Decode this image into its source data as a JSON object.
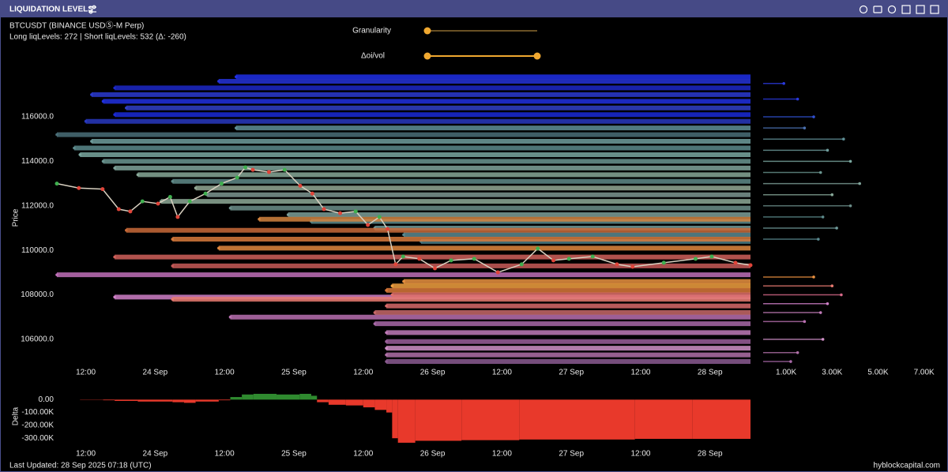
{
  "header": {
    "title": "LIQUIDATION LEVELS",
    "symbol": "BTCUSDT (BINANCE USDⓈ-M Perp)",
    "summary": "Long liqLevels: 272 | Short liqLevels: 532 (Δ: -260)",
    "controls": [
      "Granularity",
      "Δoi/vol"
    ]
  },
  "chart_data": [
    {
      "type": "liquidation-levels",
      "y_label": "Price",
      "xlim": [
        0,
        120
      ],
      "ylim": [
        104860,
        118060
      ],
      "xticks": [
        {
          "value": 5,
          "label": "12:00"
        },
        {
          "value": 17,
          "label": "24 Sep"
        },
        {
          "value": 29,
          "label": "12:00"
        },
        {
          "value": 41,
          "label": "25 Sep"
        },
        {
          "value": 53,
          "label": "12:00"
        },
        {
          "value": 65,
          "label": "26 Sep"
        },
        {
          "value": 77,
          "label": "12:00"
        },
        {
          "value": 89,
          "label": "27 Sep"
        },
        {
          "value": 101,
          "label": "12:00"
        },
        {
          "value": 113,
          "label": "28 Sep"
        }
      ],
      "yticks": [
        {
          "value": 106000,
          "label": "106000.0"
        },
        {
          "value": 108000,
          "label": "108000.0"
        },
        {
          "value": 110000,
          "label": "110000.0"
        },
        {
          "value": 112000,
          "label": "112000.0"
        },
        {
          "value": 114000,
          "label": "114000.0"
        },
        {
          "value": 116000,
          "label": "116000.0"
        }
      ],
      "levels": {
        "prices": [
          117800,
          117600,
          117300,
          117000,
          116700,
          116400,
          116100,
          115800,
          115500,
          115200,
          114900,
          114600,
          114300,
          114000,
          113700,
          113400,
          113100,
          112800,
          112500,
          112200,
          111900,
          111600,
          111300,
          111000,
          110700,
          110400,
          111400,
          110900,
          110500,
          110100,
          109700,
          109300,
          108900,
          107900,
          107800,
          108600,
          108400,
          108200,
          108000,
          107500,
          107200,
          107000,
          106700,
          106300,
          105900,
          105600,
          105300,
          105000
        ],
        "starts": [
          31,
          28,
          10,
          6,
          8,
          12,
          10,
          5,
          31,
          0,
          6,
          3,
          4,
          8,
          10,
          14,
          20,
          24,
          26,
          18,
          30,
          40,
          44,
          55,
          60,
          63,
          35,
          12,
          20,
          28,
          10,
          20,
          0,
          10,
          20,
          60,
          58,
          57,
          58,
          57,
          55,
          30,
          55,
          57,
          57,
          57,
          57,
          57
        ],
        "colors": [
          "#1f2fe8",
          "#2433d8",
          "#1c28c8",
          "#2a3ad0",
          "#2030e0",
          "#3040c8",
          "#1a2ad8",
          "#2838c0",
          "#5f8f96",
          "#4a6f78",
          "#6e9c9c",
          "#5c8a8c",
          "#7aa8a0",
          "#6a9590",
          "#7fa39a",
          "#87a898",
          "#5f8a88",
          "#93a894",
          "#7d9690",
          "#8da896",
          "#6c8e8a",
          "#7b9d98",
          "#5d8b8c",
          "#6f9a9a",
          "#5a8a90",
          "#4e7f86",
          "#d4843e",
          "#c96a38",
          "#d87a3c",
          "#e0883e",
          "#d0605a",
          "#c85a58",
          "#c070b8",
          "#d080c8",
          "#e87a70",
          "#e89040",
          "#f0a040",
          "#d87838",
          "#e0706a",
          "#d86a6a",
          "#c86868",
          "#b870b0",
          "#a868a8",
          "#c07ab8",
          "#9a5e9a",
          "#d090c8",
          "#b070a8",
          "#8a5a90"
        ]
      },
      "price": {
        "x": [
          0,
          3.8,
          7.9,
          10.7,
          12.7,
          14.8,
          17.5,
          19.6,
          20.9,
          23,
          25.7,
          28.5,
          31.2,
          32.6,
          33.9,
          36.7,
          39.4,
          42.1,
          44.2,
          46.2,
          49,
          51.7,
          53.8,
          55.8,
          57.2,
          58.6,
          59.9,
          62.7,
          65.4,
          68.2,
          72.2,
          76.3,
          80.4,
          83.2,
          85.9,
          88.6,
          92.7,
          96.9,
          99.6,
          105,
          110.5,
          113.3,
          117.4,
          120
        ],
        "values": [
          113000,
          112800,
          112750,
          111850,
          111750,
          112200,
          112100,
          112400,
          111500,
          112200,
          112550,
          113000,
          113270,
          113730,
          113620,
          113520,
          113620,
          112900,
          112550,
          111850,
          111670,
          111750,
          111140,
          111500,
          110960,
          109370,
          109720,
          109620,
          109190,
          109550,
          109620,
          109010,
          109370,
          110080,
          109550,
          109620,
          109720,
          109370,
          109260,
          109440,
          109620,
          109720,
          109440,
          109330
        ],
        "line_color": "#d8d0c0",
        "up_color": "#3fb04f",
        "down_color": "#e0453a"
      }
    },
    {
      "type": "hbar",
      "xlim": [
        0,
        7700
      ],
      "ylim": [
        104860,
        118060
      ],
      "xticks": [
        {
          "value": 1000,
          "label": "1.00K"
        },
        {
          "value": 3000,
          "label": "3.00K"
        },
        {
          "value": 5000,
          "label": "5.00K"
        },
        {
          "value": 7000,
          "label": "7.00K"
        }
      ],
      "prices": [
        117500,
        116800,
        116000,
        115500,
        115000,
        114500,
        114000,
        113500,
        113000,
        112500,
        112000,
        111500,
        111000,
        110500,
        108800,
        108400,
        108000,
        107600,
        107200,
        106800,
        106000,
        105400,
        105000
      ],
      "values": [
        900,
        1500,
        2200,
        1800,
        3500,
        2800,
        3800,
        2500,
        4200,
        3000,
        3800,
        2600,
        3200,
        2400,
        2200,
        3000,
        3400,
        2800,
        2500,
        1800,
        2600,
        1500,
        1200
      ],
      "colors": [
        "#2a3ae0",
        "#2a3ae0",
        "#3050d0",
        "#4a70b0",
        "#5f8f96",
        "#6e9c9c",
        "#7aa8a0",
        "#6a9590",
        "#7fa39a",
        "#87a898",
        "#6c8e8a",
        "#5d8b8c",
        "#6f9a9a",
        "#5a8a90",
        "#e89040",
        "#e87a70",
        "#d86a8a",
        "#d080c8",
        "#c07ab8",
        "#b870b0",
        "#d090c8",
        "#b070a8",
        "#a868a8"
      ]
    },
    {
      "type": "area",
      "y_label": "Delta",
      "xlim": [
        0,
        120
      ],
      "ylim": [
        -360000,
        100000
      ],
      "xticks": [
        {
          "value": 5,
          "label": "12:00"
        },
        {
          "value": 17,
          "label": "24 Sep"
        },
        {
          "value": 29,
          "label": "12:00"
        },
        {
          "value": 41,
          "label": "25 Sep"
        },
        {
          "value": 53,
          "label": "12:00"
        },
        {
          "value": 65,
          "label": "26 Sep"
        },
        {
          "value": 77,
          "label": "12:00"
        },
        {
          "value": 89,
          "label": "27 Sep"
        },
        {
          "value": 101,
          "label": "12:00"
        },
        {
          "value": 113,
          "label": "28 Sep"
        }
      ],
      "yticks": [
        {
          "value": 0,
          "label": "0.00"
        },
        {
          "value": -100000,
          "label": "-100.00K"
        },
        {
          "value": -200000,
          "label": "-200.00K"
        },
        {
          "value": -300000,
          "label": "-300.00K"
        }
      ],
      "x": [
        0,
        4,
        8,
        10,
        14,
        20,
        22,
        24,
        28,
        30,
        32,
        34,
        38,
        42,
        44,
        45,
        47,
        50,
        53,
        55,
        57,
        58,
        59,
        62,
        70,
        80,
        90,
        100,
        110
      ],
      "values": [
        0,
        -2000,
        -5000,
        -10000,
        -15000,
        -20000,
        -25000,
        -15000,
        -5000,
        20000,
        40000,
        45000,
        40000,
        45000,
        30000,
        -20000,
        -40000,
        -45000,
        -60000,
        -80000,
        -100000,
        -300000,
        -335000,
        -320000,
        -315000,
        -310000,
        -310000,
        -305000,
        -305000
      ],
      "pos_color": "#2f8a2f",
      "neg_color": "#e8392b"
    }
  ],
  "footer": {
    "updated": "Last Updated: 28 Sep 2025 07:18 (UTC)",
    "source": "hyblockcapital.com"
  }
}
